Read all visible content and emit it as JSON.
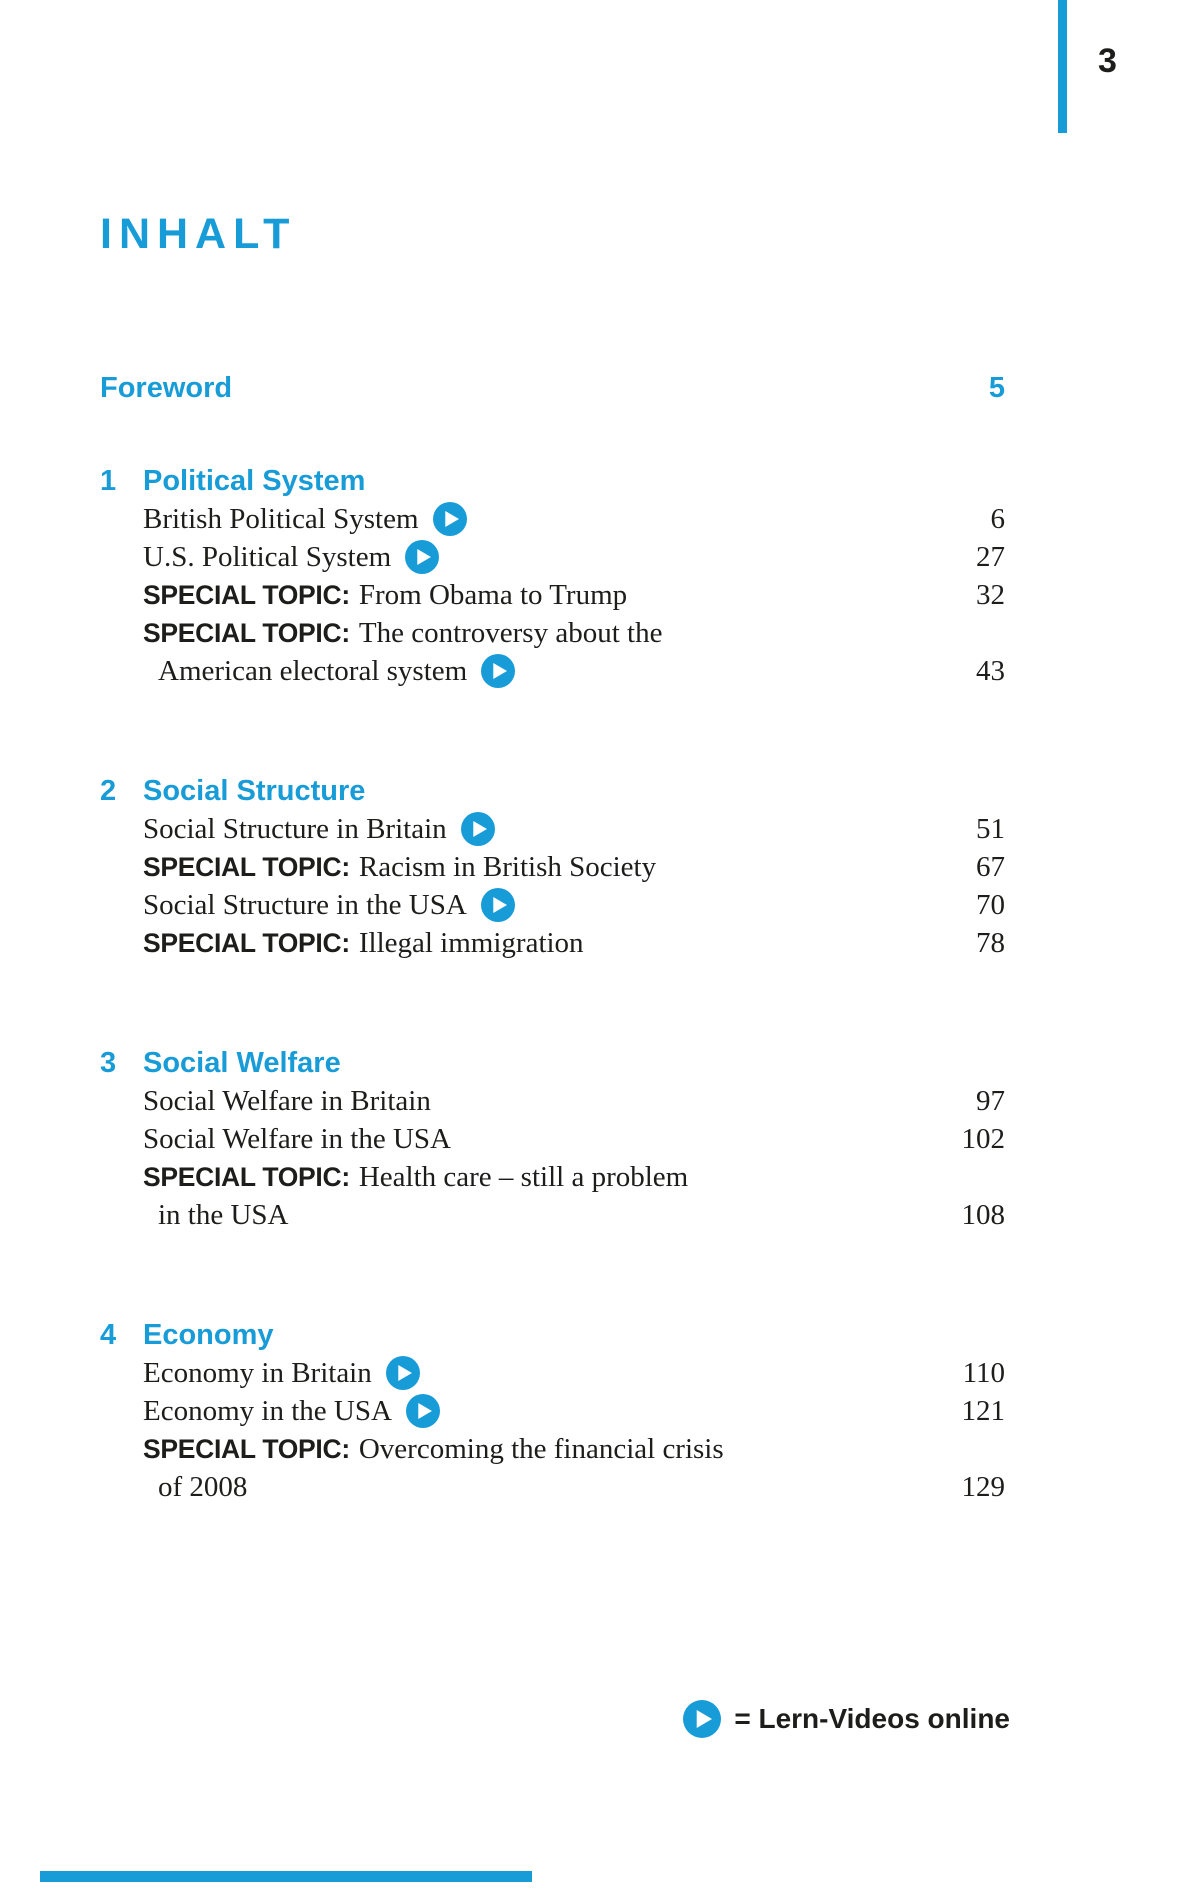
{
  "page": {
    "folio": "3",
    "title": "INHALT"
  },
  "colors": {
    "accent": "#189cd8",
    "text": "#1d1d1b"
  },
  "foreword": {
    "label": "Foreword",
    "page": "5"
  },
  "sections": [
    {
      "number": "1",
      "title": "Political System",
      "rows": [
        {
          "text": "British Political System",
          "video": true,
          "page": "6",
          "indent": false,
          "prefix": ""
        },
        {
          "text": "U.S. Political System",
          "video": true,
          "page": "27",
          "indent": false,
          "prefix": ""
        },
        {
          "prefix": "SPECIAL TOPIC:",
          "text": "From Obama to Trump",
          "video": false,
          "page": "32",
          "indent": false
        },
        {
          "prefix": "SPECIAL TOPIC:",
          "text": "The controversy about the",
          "video": false,
          "page": "",
          "indent": false
        },
        {
          "text": "American electoral system",
          "video": true,
          "page": "43",
          "indent": true,
          "prefix": ""
        }
      ]
    },
    {
      "number": "2",
      "title": "Social Structure",
      "rows": [
        {
          "text": "Social Structure in Britain",
          "video": true,
          "page": "51",
          "indent": false,
          "prefix": ""
        },
        {
          "prefix": "SPECIAL TOPIC:",
          "text": "Racism in British Society",
          "video": false,
          "page": "67",
          "indent": false
        },
        {
          "text": "Social Structure in the USA",
          "video": true,
          "page": "70",
          "indent": false,
          "prefix": ""
        },
        {
          "prefix": "SPECIAL TOPIC:",
          "text": "Illegal immigration",
          "video": false,
          "page": "78",
          "indent": false
        }
      ]
    },
    {
      "number": "3",
      "title": "Social Welfare",
      "rows": [
        {
          "text": "Social Welfare in Britain",
          "video": false,
          "page": "97",
          "indent": false,
          "prefix": ""
        },
        {
          "text": "Social Welfare in the USA",
          "video": false,
          "page": "102",
          "indent": false,
          "prefix": ""
        },
        {
          "prefix": "SPECIAL TOPIC:",
          "text": "Health care – still a problem",
          "video": false,
          "page": "",
          "indent": false
        },
        {
          "text": "in the USA",
          "video": false,
          "page": "108",
          "indent": true,
          "prefix": ""
        }
      ]
    },
    {
      "number": "4",
      "title": "Economy",
      "rows": [
        {
          "text": "Economy in Britain",
          "video": true,
          "page": "110",
          "indent": false,
          "prefix": ""
        },
        {
          "text": "Economy in the USA",
          "video": true,
          "page": "121",
          "indent": false,
          "prefix": ""
        },
        {
          "prefix": "SPECIAL TOPIC:",
          "text": "Overcoming the financial crisis",
          "video": false,
          "page": "",
          "indent": false
        },
        {
          "text": "of 2008",
          "video": false,
          "page": "129",
          "indent": true,
          "prefix": ""
        }
      ]
    }
  ],
  "legend": {
    "icon": "play-video-icon",
    "text": "= Lern-Videos online"
  }
}
